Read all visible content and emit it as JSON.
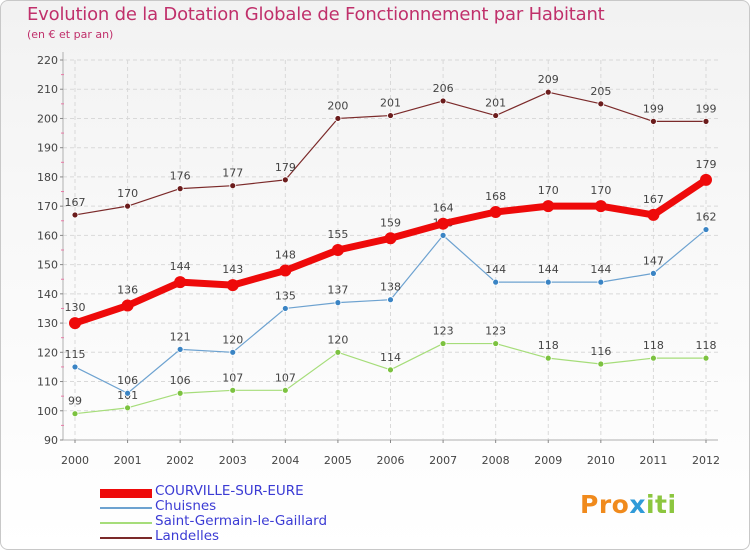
{
  "title": "Evolution de la Dotation Globale de Fonctionnement par Habitant",
  "subtitle": "(en € et par an)",
  "logo": {
    "p1": "Pro",
    "p2": "x",
    "p3": "iti"
  },
  "chart_data": {
    "type": "line",
    "title": "Evolution de la Dotation Globale de Fonctionnement par Habitant",
    "ylabel": "(en € et par an)",
    "xlabel": "",
    "ylim": [
      90,
      220
    ],
    "yticks": [
      90,
      100,
      110,
      120,
      130,
      140,
      150,
      160,
      170,
      180,
      190,
      200,
      210,
      220
    ],
    "categories": [
      "2000",
      "2001",
      "2002",
      "2003",
      "2004",
      "2005",
      "2006",
      "2007",
      "2008",
      "2009",
      "2010",
      "2011",
      "2012"
    ],
    "legend_position": "bottom-left",
    "series": [
      {
        "name": "Landelles",
        "color": "#7b2a2a",
        "marker": "#6b1c1c",
        "width": 1.2,
        "radius": 3,
        "values": [
          167,
          170,
          176,
          177,
          179,
          200,
          201,
          206,
          201,
          209,
          205,
          199,
          199
        ]
      },
      {
        "name": "Saint-Germain-le-Gaillard",
        "color": "#a6dd7a",
        "marker": "#7cc240",
        "width": 1.2,
        "radius": 3,
        "values": [
          99,
          101,
          106,
          107,
          107,
          120,
          114,
          123,
          123,
          118,
          116,
          118,
          118
        ]
      },
      {
        "name": "Chuisnes",
        "color": "#6da2d0",
        "marker": "#3a84c4",
        "width": 1.2,
        "radius": 3,
        "values": [
          115,
          106,
          121,
          120,
          135,
          137,
          138,
          160,
          144,
          144,
          144,
          147,
          162
        ]
      },
      {
        "name": "COURVILLE-SUR-EURE",
        "color": "#ee0a0a",
        "marker": "#ee0a0a",
        "width": 7,
        "radius": 6,
        "values": [
          130,
          136,
          144,
          143,
          148,
          155,
          159,
          164,
          168,
          170,
          170,
          167,
          179
        ]
      }
    ]
  },
  "legend": [
    {
      "label": "COURVILLE-SUR-EURE",
      "color": "#ee0a0a"
    },
    {
      "label": "Chuisnes",
      "color": "#6da2d0"
    },
    {
      "label": "Saint-Germain-le-Gaillard",
      "color": "#a6dd7a"
    },
    {
      "label": "Landelles",
      "color": "#7b2a2a"
    }
  ]
}
